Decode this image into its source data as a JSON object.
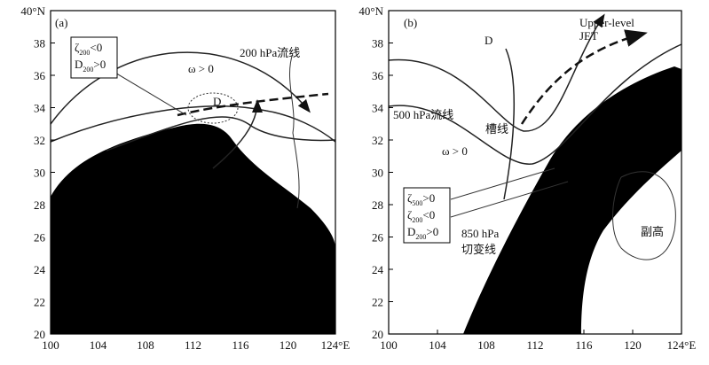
{
  "panels": [
    {
      "label": "(a)",
      "yticks": [
        "40°N",
        "38",
        "36",
        "34",
        "32",
        "30",
        "28",
        "26",
        "24",
        "22",
        "20"
      ],
      "xticks": [
        "100",
        "104",
        "108",
        "112",
        "116",
        "120",
        "124°E"
      ],
      "annotations": [
        "200 hPa流线",
        "ω > 0",
        "D"
      ],
      "box": [
        [
          "ζ",
          "200",
          "<0"
        ],
        [
          "D",
          "200",
          ">0"
        ]
      ]
    },
    {
      "label": "(b)",
      "yticks": [
        "40°N",
        "38",
        "36",
        "34",
        "32",
        "30",
        "28",
        "26",
        "24",
        "22",
        "20"
      ],
      "xticks": [
        "100",
        "104",
        "108",
        "112",
        "116",
        "120",
        "124°E"
      ],
      "annotations": [
        "Upper-level",
        "JET",
        "D",
        "500 hPa流线",
        "槽线",
        "ω > 0",
        "850 hPa",
        "切变线",
        "副高"
      ],
      "box": [
        [
          "ζ",
          "500",
          ">0"
        ],
        [
          "ζ",
          "200",
          "<0"
        ],
        [
          "D",
          "200",
          ">0"
        ]
      ]
    }
  ]
}
